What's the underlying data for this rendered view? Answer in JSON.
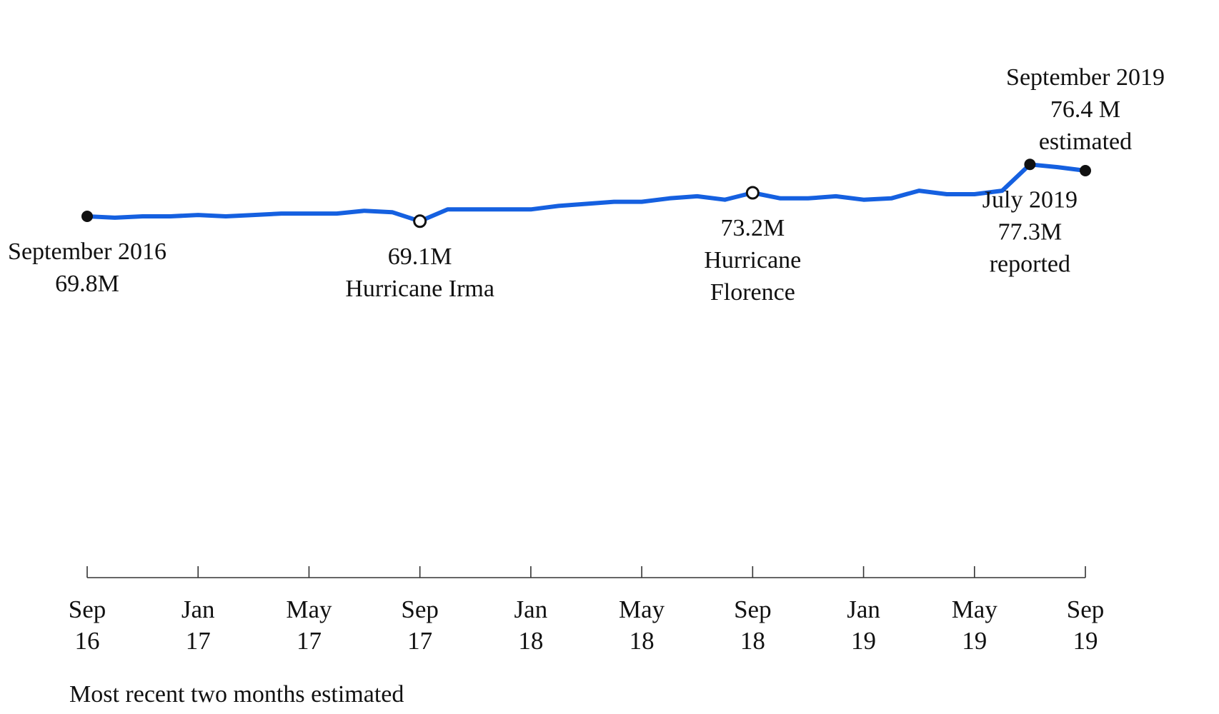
{
  "chart_data": {
    "type": "line",
    "title": "",
    "xlabel": "",
    "ylabel": "",
    "x_ticks": [
      {
        "date": "2016-09",
        "label": [
          "Sep",
          "16"
        ]
      },
      {
        "date": "2017-01",
        "label": [
          "Jan",
          "17"
        ]
      },
      {
        "date": "2017-05",
        "label": [
          "May",
          "17"
        ]
      },
      {
        "date": "2017-09",
        "label": [
          "Sep",
          "17"
        ]
      },
      {
        "date": "2018-01",
        "label": [
          "Jan",
          "18"
        ]
      },
      {
        "date": "2018-05",
        "label": [
          "May",
          "18"
        ]
      },
      {
        "date": "2018-09",
        "label": [
          "Sep",
          "18"
        ]
      },
      {
        "date": "2019-01",
        "label": [
          "Jan",
          "19"
        ]
      },
      {
        "date": "2019-05",
        "label": [
          "May",
          "19"
        ]
      },
      {
        "date": "2019-09",
        "label": [
          "Sep",
          "19"
        ]
      }
    ],
    "y_unit": "millions",
    "series": [
      {
        "color": "#1560e0",
        "points": [
          [
            "2016-09",
            69.8
          ],
          [
            "2016-10",
            69.6
          ],
          [
            "2016-11",
            69.8
          ],
          [
            "2016-12",
            69.8
          ],
          [
            "2017-01",
            70.0
          ],
          [
            "2017-02",
            69.8
          ],
          [
            "2017-03",
            70.0
          ],
          [
            "2017-04",
            70.2
          ],
          [
            "2017-05",
            70.2
          ],
          [
            "2017-06",
            70.2
          ],
          [
            "2017-07",
            70.6
          ],
          [
            "2017-08",
            70.4
          ],
          [
            "2017-09",
            69.1
          ],
          [
            "2017-10",
            70.8
          ],
          [
            "2017-11",
            70.8
          ],
          [
            "2017-12",
            70.8
          ],
          [
            "2018-01",
            70.8
          ],
          [
            "2018-02",
            71.3
          ],
          [
            "2018-03",
            71.6
          ],
          [
            "2018-04",
            71.9
          ],
          [
            "2018-05",
            71.9
          ],
          [
            "2018-06",
            72.4
          ],
          [
            "2018-07",
            72.7
          ],
          [
            "2018-08",
            72.2
          ],
          [
            "2018-09",
            73.2
          ],
          [
            "2018-10",
            72.4
          ],
          [
            "2018-11",
            72.4
          ],
          [
            "2018-12",
            72.7
          ],
          [
            "2019-01",
            72.2
          ],
          [
            "2019-02",
            72.4
          ],
          [
            "2019-03",
            73.5
          ],
          [
            "2019-04",
            73.0
          ],
          [
            "2019-05",
            73.0
          ],
          [
            "2019-06",
            73.5
          ],
          [
            "2019-07",
            77.3
          ],
          [
            "2019-08",
            76.9
          ],
          [
            "2019-09",
            76.4
          ]
        ]
      }
    ],
    "markers": [
      {
        "date": "2016-09",
        "value": 69.8,
        "style": "filled"
      },
      {
        "date": "2017-09",
        "value": 69.1,
        "style": "open"
      },
      {
        "date": "2018-09",
        "value": 73.2,
        "style": "open"
      },
      {
        "date": "2019-07",
        "value": 77.3,
        "style": "filled"
      },
      {
        "date": "2019-09",
        "value": 76.4,
        "style": "filled"
      }
    ],
    "annotations": [
      {
        "date": "2016-09",
        "placement": "below",
        "lines": [
          "September 2016",
          "69.8M"
        ]
      },
      {
        "date": "2017-09",
        "placement": "below",
        "lines": [
          "69.1M",
          "Hurricane Irma"
        ]
      },
      {
        "date": "2018-09",
        "placement": "below",
        "lines": [
          "73.2M",
          "Hurricane",
          "Florence"
        ]
      },
      {
        "date": "2019-07",
        "placement": "below",
        "lines": [
          "July 2019",
          "77.3M",
          "reported"
        ]
      },
      {
        "date": "2019-09",
        "placement": "above",
        "lines": [
          "September 2019",
          "76.4 M",
          "estimated"
        ]
      }
    ],
    "legend": "none",
    "grid": false
  },
  "footnote": "Most recent two months estimated"
}
